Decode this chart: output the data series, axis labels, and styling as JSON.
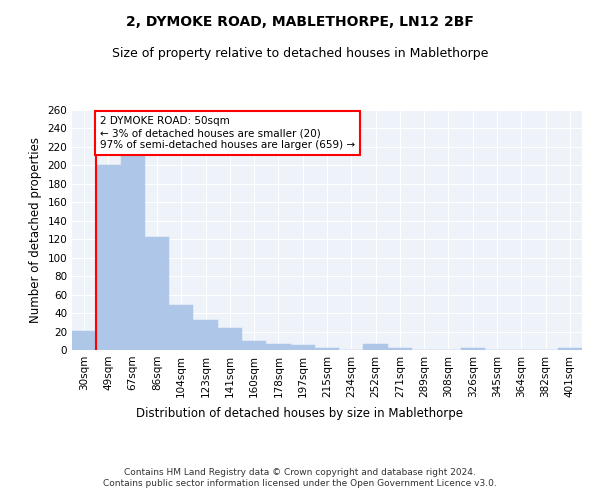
{
  "title1": "2, DYMOKE ROAD, MABLETHORPE, LN12 2BF",
  "title2": "Size of property relative to detached houses in Mablethorpe",
  "xlabel": "Distribution of detached houses by size in Mablethorpe",
  "ylabel": "Number of detached properties",
  "categories": [
    "30sqm",
    "49sqm",
    "67sqm",
    "86sqm",
    "104sqm",
    "123sqm",
    "141sqm",
    "160sqm",
    "178sqm",
    "197sqm",
    "215sqm",
    "234sqm",
    "252sqm",
    "271sqm",
    "289sqm",
    "308sqm",
    "326sqm",
    "345sqm",
    "364sqm",
    "382sqm",
    "401sqm"
  ],
  "values": [
    21,
    200,
    215,
    122,
    49,
    33,
    24,
    10,
    6,
    5,
    2,
    0,
    7,
    2,
    0,
    0,
    2,
    0,
    0,
    0,
    2
  ],
  "bar_color": "#aec6e8",
  "bar_edge_color": "#aec6e8",
  "vline_color": "red",
  "vline_x_index": 1,
  "annotation_text": "2 DYMOKE ROAD: 50sqm\n← 3% of detached houses are smaller (20)\n97% of semi-detached houses are larger (659) →",
  "annotation_box_color": "white",
  "annotation_box_edge": "red",
  "ylim": [
    0,
    260
  ],
  "yticks": [
    0,
    20,
    40,
    60,
    80,
    100,
    120,
    140,
    160,
    180,
    200,
    220,
    240,
    260
  ],
  "footer": "Contains HM Land Registry data © Crown copyright and database right 2024.\nContains public sector information licensed under the Open Government Licence v3.0.",
  "bg_color": "#eef2f9",
  "grid_color": "white",
  "title1_fontsize": 10,
  "title2_fontsize": 9,
  "xlabel_fontsize": 8.5,
  "ylabel_fontsize": 8.5,
  "tick_fontsize": 7.5,
  "footer_fontsize": 6.5,
  "annot_fontsize": 7.5
}
